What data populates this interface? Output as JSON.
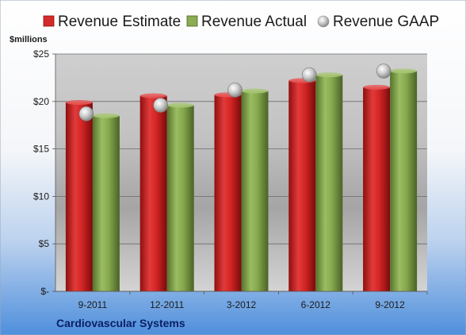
{
  "chart_data": {
    "type": "bar",
    "title": "",
    "ylabel": "$millions",
    "xlabel": "",
    "footer": "Cardiovascular Systems",
    "categories": [
      "9-2011",
      "12-2011",
      "3-2012",
      "6-2012",
      "9-2012"
    ],
    "ylim": [
      0,
      25
    ],
    "yticks": [
      0,
      5,
      10,
      15,
      20,
      25
    ],
    "ytick_labels": [
      "$-",
      "$5",
      "$10",
      "$15",
      "$20",
      "$25"
    ],
    "grid": true,
    "legend_position": "top",
    "series": [
      {
        "name": "Revenue Estimate",
        "kind": "bar",
        "color": "#d42a2a",
        "values": [
          19.9,
          20.6,
          20.7,
          22.2,
          21.5
        ]
      },
      {
        "name": "Revenue Actual",
        "kind": "bar",
        "color": "#7fa04a",
        "values": [
          18.5,
          19.6,
          21.1,
          22.8,
          23.2
        ]
      },
      {
        "name": "Revenue GAAP",
        "kind": "marker",
        "color": "#b8b8b8",
        "values": [
          18.7,
          19.6,
          21.2,
          22.8,
          23.2
        ]
      }
    ]
  }
}
